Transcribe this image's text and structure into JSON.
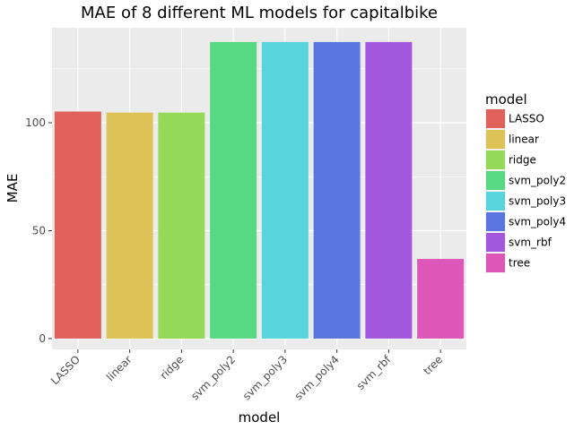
{
  "chart_data": {
    "type": "bar",
    "title": "MAE of 8 different ML models for capitalbike",
    "xlabel": "model",
    "ylabel": "MAE",
    "categories": [
      "LASSO",
      "linear",
      "ridge",
      "svm_poly2",
      "svm_poly3",
      "svm_poly4",
      "svm_rbf",
      "tree"
    ],
    "values": [
      105.2,
      104.7,
      104.7,
      137.4,
      137.4,
      137.4,
      137.4,
      36.9
    ],
    "colors": [
      "#e0605a",
      "#dcc257",
      "#94d957",
      "#57d984",
      "#57d4dc",
      "#5a74e0",
      "#a257dc",
      "#dc57b8"
    ],
    "ylim": [
      -5,
      144
    ],
    "yticks": [
      0,
      50,
      100
    ],
    "legend": {
      "title": "model",
      "position": "right",
      "entries": [
        "LASSO",
        "linear",
        "ridge",
        "svm_poly2",
        "svm_poly3",
        "svm_poly4",
        "svm_rbf",
        "tree"
      ]
    },
    "grid": true
  }
}
